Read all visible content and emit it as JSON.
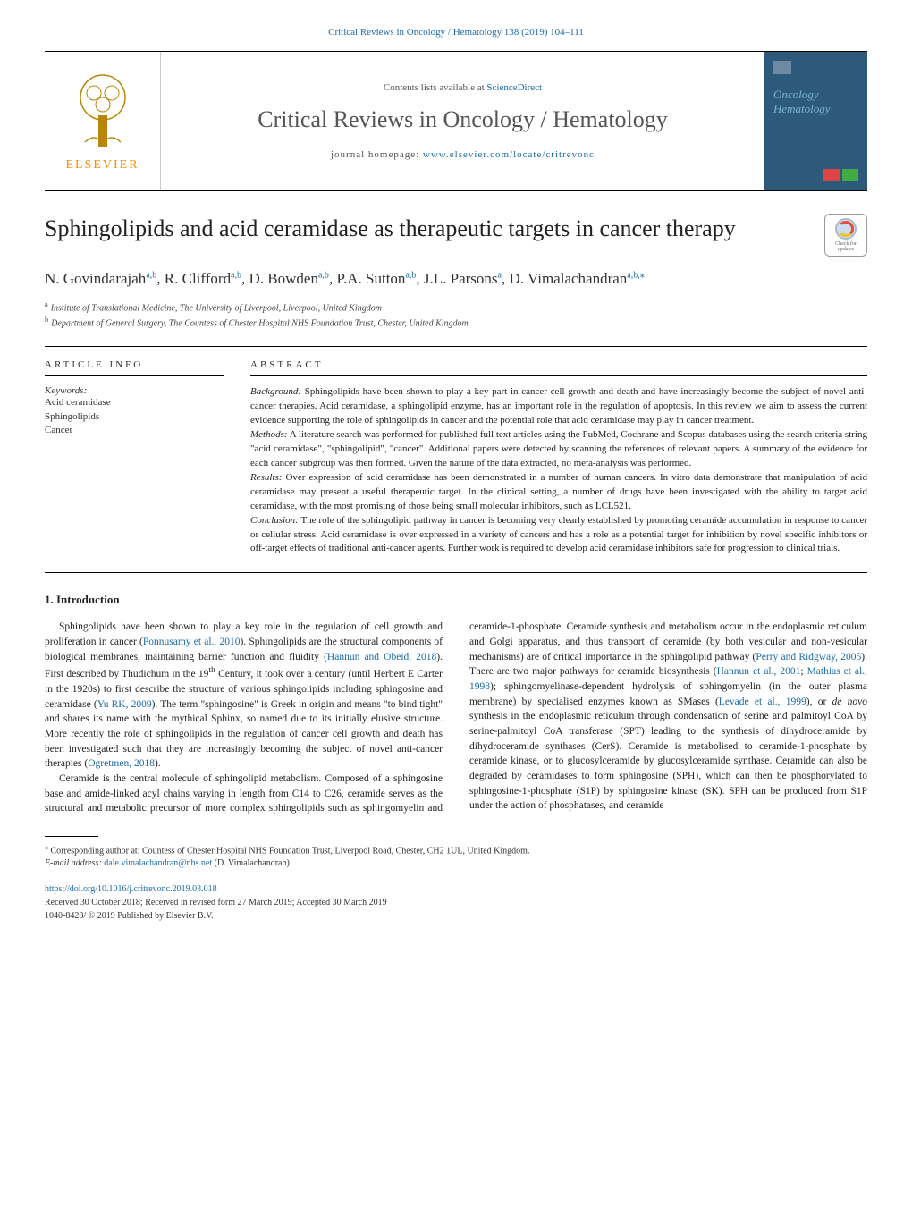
{
  "header": {
    "top_link": "Critical Reviews in Oncology / Hematology 138 (2019) 104–111",
    "contents_prefix": "Contents lists available at ",
    "contents_link": "ScienceDirect",
    "journal_name": "Critical Reviews in Oncology / Hematology",
    "homepage_prefix": "journal homepage: ",
    "homepage_link": "www.elsevier.com/locate/critrevonc",
    "publisher": "ELSEVIER",
    "cover_text1": "Oncology",
    "cover_text2": "Hematology"
  },
  "check_updates": {
    "line1": "Check for",
    "line2": "updates"
  },
  "article": {
    "title": "Sphingolipids and acid ceramidase as therapeutic targets in cancer therapy",
    "authors_html": "N. Govindarajah<sup>a,b</sup>, R. Clifford<sup>a,b</sup>, D. Bowden<sup>a,b</sup>, P.A. Sutton<sup>a,b</sup>, J.L. Parsons<sup>a</sup>, D. Vimalachandran<sup>a,b,</sup><sup>⁎</sup>",
    "affiliations": [
      {
        "mark": "a",
        "text": "Institute of Translational Medicine, The University of Liverpool, Liverpool, United Kingdom"
      },
      {
        "mark": "b",
        "text": "Department of General Surgery, The Countess of Chester Hospital NHS Foundation Trust, Chester, United Kingdom"
      }
    ]
  },
  "info": {
    "article_info_head": "ARTICLE INFO",
    "abstract_head": "ABSTRACT",
    "keywords_label": "Keywords:",
    "keywords": [
      "Acid ceramidase",
      "Sphingolipids",
      "Cancer"
    ]
  },
  "abstract": {
    "segments": [
      {
        "label": "Background:",
        "text": " Sphingolipids have been shown to play a key part in cancer cell growth and death and have increasingly become the subject of novel anti-cancer therapies. Acid ceramidase, a sphingolipid enzyme, has an important role in the regulation of apoptosis. In this review we aim to assess the current evidence supporting the role of sphingolipids in cancer and the potential role that acid ceramidase may play in cancer treatment."
      },
      {
        "label": "Methods:",
        "text": " A literature search was performed for published full text articles using the PubMed, Cochrane and Scopus databases using the search criteria string \"acid ceramidase\", \"sphingolipid\", \"cancer\". Additional papers were detected by scanning the references of relevant papers. A summary of the evidence for each cancer subgroup was then formed. Given the nature of the data extracted, no meta-analysis was performed."
      },
      {
        "label": "Results:",
        "text": " Over expression of acid ceramidase has been demonstrated in a number of human cancers. In vitro data demonstrate that manipulation of acid ceramidase may present a useful therapeutic target. In the clinical setting, a number of drugs have been investigated with the ability to target acid ceramidase, with the most promising of those being small molecular inhibitors, such as LCL521."
      },
      {
        "label": "Conclusion:",
        "text": " The role of the sphingolipid pathway in cancer is becoming very clearly established by promoting ceramide accumulation in response to cancer or cellular stress. Acid ceramidase is over expressed in a variety of cancers and has a role as a potential target for inhibition by novel specific inhibitors or off-target effects of traditional anti-cancer agents. Further work is required to develop acid ceramidase inhibitors safe for progression to clinical trials."
      }
    ]
  },
  "section1": {
    "heading": "1. Introduction"
  },
  "body": {
    "p1": "Sphingolipids have been shown to play a key role in the regulation of cell growth and proliferation in cancer (<span class=\"cite\">Ponnusamy et al., 2010</span>). Sphingolipids are the structural components of biological membranes, maintaining barrier function and fluidity (<span class=\"cite\">Hannun and Obeid, 2018</span>). First described by Thudichum in the 19<sup>th</sup> Century, it took over a century (until Herbert E Carter in the 1920s) to first describe the structure of various sphingolipids including sphingosine and ceramidase (<span class=\"cite\">Yu RK, 2009</span>). The term \"sphingosine\" is Greek in origin and means \"to bind tight\" and shares its name with the mythical Sphinx, so named due to its initially elusive structure. More recently the role of sphingolipids in the regulation of cancer cell growth and death has been investigated such that they are increasingly becoming the subject of novel anti-cancer therapies (<span class=\"cite\">Ogretmen, 2018</span>).",
    "p2": "Ceramide is the central molecule of sphingolipid metabolism. Composed of a sphingosine base and amide-linked acyl chains varying in length from C14 to C26, ceramide serves as the structural and metabolic precursor of more complex sphingolipids such as sphingomyelin and ceramide-1-phosphate. Ceramide synthesis and metabolism occur in the endoplasmic reticulum and Golgi apparatus, and thus transport of ceramide (by both vesicular and non-vesicular mechanisms) are of critical importance in the sphingolipid pathway (<span class=\"cite\">Perry and Ridgway, 2005</span>). There are two major pathways for ceramide biosynthesis (<span class=\"cite\">Hannun et al., 2001</span>; <span class=\"cite\">Mathias et al., 1998</span>); sphingomyelinase-dependent hydrolysis of sphingomyelin (in the outer plasma membrane) by specialised enzymes known as SMases (<span class=\"cite\">Levade et al., 1999</span>), or <i>de novo</i> synthesis in the endoplasmic reticulum through condensation of serine and palmitoyl CoA by serine-palmitoyl CoA transferase (SPT) leading to the synthesis of dihydroceramide by dihydroceramide synthases (CerS). Ceramide is metabolised to ceramide-1-phosphate by ceramide kinase, or to glucosylceramide by glucosylceramide synthase. Ceramide can also be degraded by ceramidases to form sphingosine (SPH), which can then be phosphorylated to sphingosine-1-phosphate (S1P) by sphingosine kinase (SK). SPH can be produced from S1P under the action of phosphatases, and ceramide"
  },
  "footer": {
    "corr_mark": "⁎",
    "corr_text": " Corresponding author at: Countess of Chester Hospital NHS Foundation Trust, Liverpool Road, Chester, CH2 1UL, United Kingdom.",
    "email_label": "E-mail address: ",
    "email": "dale.vimalachandran@nhs.net",
    "email_suffix": " (D. Vimalachandran).",
    "doi": "https://doi.org/10.1016/j.critrevonc.2019.03.018",
    "received": "Received 30 October 2018; Received in revised form 27 March 2019; Accepted 30 March 2019",
    "copyright": "1040-8428/ © 2019 Published by Elsevier B.V."
  },
  "colors": {
    "link": "#1a6ba8",
    "elsevier_orange": "#ff8c00",
    "cover_bg": "#2d5a7a",
    "cover_text": "#7bb3d4"
  }
}
